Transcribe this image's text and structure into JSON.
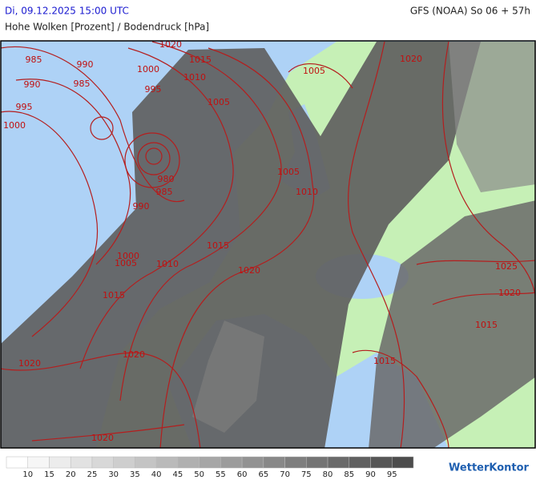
{
  "header": {
    "datetime": "Di, 09.12.2025 15:00 UTC",
    "title": "Hohe Wolken [Prozent] / Bodendruck [hPa]",
    "model": "GFS (NOAA) So 06 + 57h"
  },
  "isobar_labels": [
    1020,
    985,
    990,
    1000,
    1015,
    1010,
    990,
    985,
    995,
    1005,
    995,
    1000,
    1005,
    1020,
    980,
    985,
    990,
    1005,
    1010,
    1015,
    1000,
    1005,
    1010,
    1020,
    1015,
    1025,
    1020,
    1015,
    1015,
    1020,
    1020,
    1020
  ],
  "legend": {
    "labels": [
      10,
      15,
      20,
      25,
      30,
      35,
      40,
      45,
      50,
      55,
      60,
      65,
      70,
      75,
      80,
      85,
      90,
      95
    ],
    "colors": [
      "#ffffff",
      "#f6f6f6",
      "#ececec",
      "#e2e2e2",
      "#d8d8d8",
      "#cecece",
      "#c4c4c4",
      "#bababa",
      "#b0b0b0",
      "#a6a6a6",
      "#9c9c9c",
      "#929292",
      "#888888",
      "#7e7e7e",
      "#747474",
      "#6a6a6a",
      "#606060",
      "#565656",
      "#4c4c4c"
    ]
  },
  "logo": "WetterKontor"
}
